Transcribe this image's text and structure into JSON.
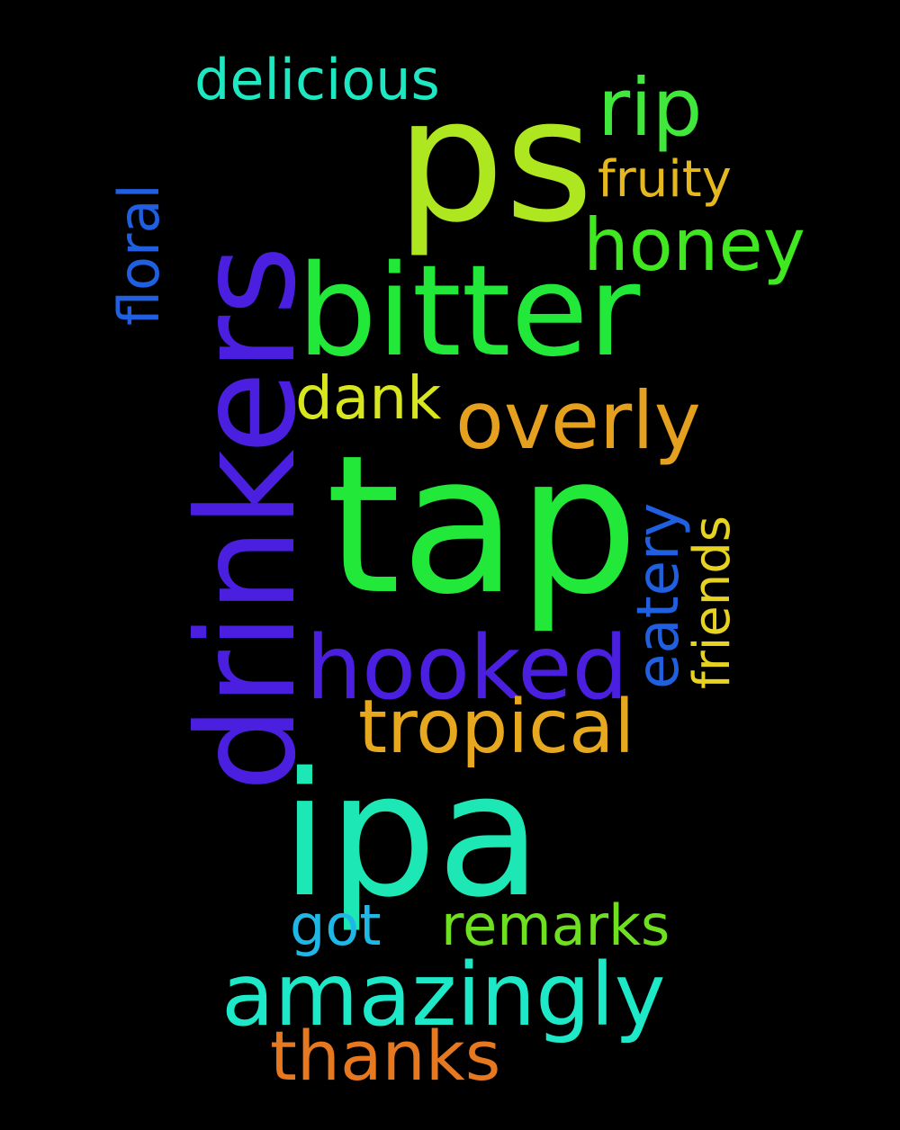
{
  "background": "#000000",
  "words": [
    {
      "text": "ps",
      "color": "#aee61f"
    },
    {
      "text": "drinkers",
      "color": "#4b1fe0"
    },
    {
      "text": "tap",
      "color": "#22e83a"
    },
    {
      "text": "bitter",
      "color": "#22e83a"
    },
    {
      "text": "ipa",
      "color": "#1de8b5"
    },
    {
      "text": "rip",
      "color": "#3fe83a"
    },
    {
      "text": "delicious",
      "color": "#1de8c2"
    },
    {
      "text": "floral",
      "color": "#1f5fe0"
    },
    {
      "text": "fruity",
      "color": "#e6b81f"
    },
    {
      "text": "honey",
      "color": "#3fe81f"
    },
    {
      "text": "dank",
      "color": "#d8e61f"
    },
    {
      "text": "overly",
      "color": "#e6a01f"
    },
    {
      "text": "eatery",
      "color": "#1f5fe0"
    },
    {
      "text": "friends",
      "color": "#e6d21f"
    },
    {
      "text": "hooked",
      "color": "#4b1fe0"
    },
    {
      "text": "tropical",
      "color": "#e6a81f"
    },
    {
      "text": "got",
      "color": "#1fb8e6"
    },
    {
      "text": "remarks",
      "color": "#6fe01f"
    },
    {
      "text": "amazingly",
      "color": "#1de8c8"
    },
    {
      "text": "thanks",
      "color": "#e6781f"
    }
  ]
}
